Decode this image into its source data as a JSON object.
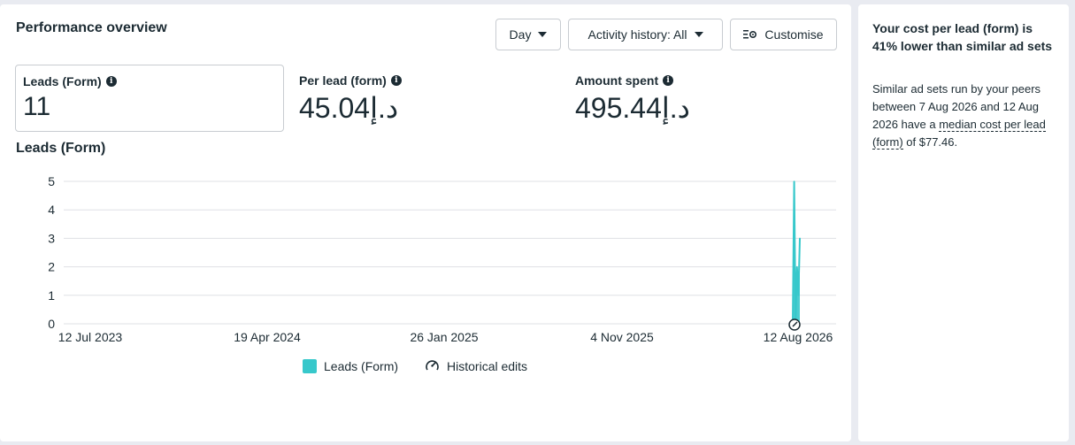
{
  "performance": {
    "title": "Performance overview",
    "day_button": "Day",
    "activity_button": "Activity history: All",
    "customise_button": "Customise"
  },
  "metrics": [
    {
      "label": "Leads (Form)",
      "value": "11"
    },
    {
      "label": "Per lead (form)",
      "value": "45.04د.إ"
    },
    {
      "label": "Amount spent",
      "value": "495.44د.إ"
    }
  ],
  "chart_data": {
    "type": "line",
    "title": "Leads (Form)",
    "x_tick_labels": [
      "12 Jul 2023",
      "19 Apr 2024",
      "26 Jan 2025",
      "4 Nov 2025",
      "12 Aug 2026"
    ],
    "y_ticks": [
      0,
      1,
      2,
      3,
      4,
      5
    ],
    "ylim": [
      0,
      5
    ],
    "series": [
      {
        "name": "Leads (Form)",
        "color": "#37c8cb",
        "x": [
          "7 Aug 2026",
          "8 Aug 2026",
          "9 Aug 2026",
          "10 Aug 2026",
          "11 Aug 2026",
          "12 Aug 2026"
        ],
        "values": [
          0,
          5,
          0,
          2,
          1,
          3
        ]
      }
    ],
    "legend": [
      "Leads (Form)",
      "Historical edits"
    ],
    "grid": true
  },
  "sidebar": {
    "headline": "Your cost per lead (form) is 41% lower than similar ad sets",
    "body_prefix": "Similar ad sets run by your peers between 7 Aug 2026 and 12 Aug 2026 have a ",
    "body_link": "median cost per lead (form)",
    "body_suffix": " of $77.46."
  }
}
